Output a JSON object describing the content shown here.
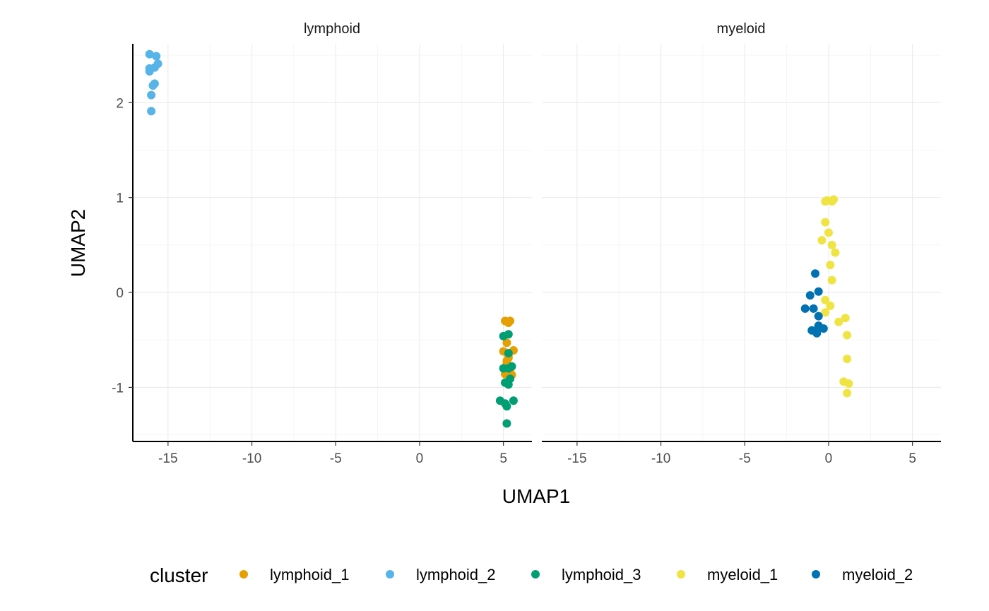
{
  "chart_data": {
    "type": "scatter",
    "facet_by": "lineage",
    "panels": [
      "lymphoid",
      "myeloid"
    ],
    "xlabel": "UMAP1",
    "ylabel": "UMAP2",
    "xlim": [
      -17.1,
      6.7
    ],
    "ylim": [
      -1.57,
      2.62
    ],
    "x_ticks": [
      -15,
      -10,
      -5,
      0,
      5
    ],
    "x_tick_labels": [
      "-15",
      "-10",
      "-5",
      "0",
      "5"
    ],
    "y_ticks": [
      -1,
      0,
      1,
      2
    ],
    "y_tick_labels": [
      "-1",
      "0",
      "1",
      "2"
    ],
    "grid": true,
    "legend": {
      "title": "cluster",
      "position": "bottom"
    },
    "series": [
      {
        "name": "lymphoid_1",
        "panel": "lymphoid",
        "color": "#E69F00",
        "points": [
          [
            5.1,
            -0.3
          ],
          [
            5.4,
            -0.3
          ],
          [
            5.3,
            -0.32
          ],
          [
            5.2,
            -0.53
          ],
          [
            5.0,
            -0.62
          ],
          [
            5.6,
            -0.61
          ],
          [
            5.3,
            -0.67
          ],
          [
            5.2,
            -0.72
          ],
          [
            5.3,
            -0.69
          ],
          [
            5.1,
            -0.86
          ],
          [
            5.5,
            -0.87
          ],
          [
            5.2,
            -0.75
          ],
          [
            5.4,
            -0.82
          ]
        ]
      },
      {
        "name": "lymphoid_2",
        "panel": "lymphoid",
        "color": "#56B4E9",
        "points": [
          [
            -16.1,
            2.51
          ],
          [
            -15.7,
            2.49
          ],
          [
            -15.6,
            2.41
          ],
          [
            -16.1,
            2.36
          ],
          [
            -15.8,
            2.37
          ],
          [
            -16.1,
            2.33
          ],
          [
            -15.8,
            2.2
          ],
          [
            -15.9,
            2.18
          ],
          [
            -16.0,
            2.08
          ],
          [
            -16.0,
            1.91
          ]
        ]
      },
      {
        "name": "lymphoid_3",
        "panel": "lymphoid",
        "color": "#009E73",
        "points": [
          [
            5.0,
            -0.46
          ],
          [
            5.3,
            -0.44
          ],
          [
            5.3,
            -0.64
          ],
          [
            5.5,
            -0.78
          ],
          [
            5.3,
            -0.8
          ],
          [
            5.0,
            -0.8
          ],
          [
            5.4,
            -0.91
          ],
          [
            5.1,
            -0.95
          ],
          [
            5.3,
            -0.97
          ],
          [
            4.8,
            -1.14
          ],
          [
            5.1,
            -1.17
          ],
          [
            5.6,
            -1.14
          ],
          [
            5.2,
            -1.2
          ],
          [
            5.2,
            -1.38
          ]
        ]
      },
      {
        "name": "myeloid_1",
        "panel": "myeloid",
        "color": "#F0E442",
        "points": [
          [
            -0.2,
            0.96
          ],
          [
            -0.1,
            0.97
          ],
          [
            0.3,
            0.98
          ],
          [
            0.2,
            0.96
          ],
          [
            -0.2,
            0.74
          ],
          [
            0.0,
            0.63
          ],
          [
            -0.4,
            0.55
          ],
          [
            0.2,
            0.5
          ],
          [
            0.4,
            0.42
          ],
          [
            0.1,
            0.29
          ],
          [
            0.2,
            0.13
          ],
          [
            -0.2,
            -0.08
          ],
          [
            0.1,
            -0.14
          ],
          [
            -0.2,
            -0.21
          ],
          [
            1.0,
            -0.27
          ],
          [
            0.6,
            -0.31
          ],
          [
            1.1,
            -0.45
          ],
          [
            1.1,
            -0.7
          ],
          [
            0.9,
            -0.94
          ],
          [
            1.2,
            -0.96
          ],
          [
            1.1,
            -1.06
          ]
        ]
      },
      {
        "name": "myeloid_2",
        "panel": "myeloid",
        "color": "#0072B2",
        "points": [
          [
            -0.8,
            0.2
          ],
          [
            -0.6,
            0.01
          ],
          [
            -1.1,
            -0.03
          ],
          [
            -1.4,
            -0.17
          ],
          [
            -0.9,
            -0.17
          ],
          [
            -0.6,
            -0.25
          ],
          [
            -0.6,
            -0.35
          ],
          [
            -0.3,
            -0.38
          ],
          [
            -1.0,
            -0.4
          ],
          [
            -0.7,
            -0.43
          ]
        ]
      }
    ]
  }
}
